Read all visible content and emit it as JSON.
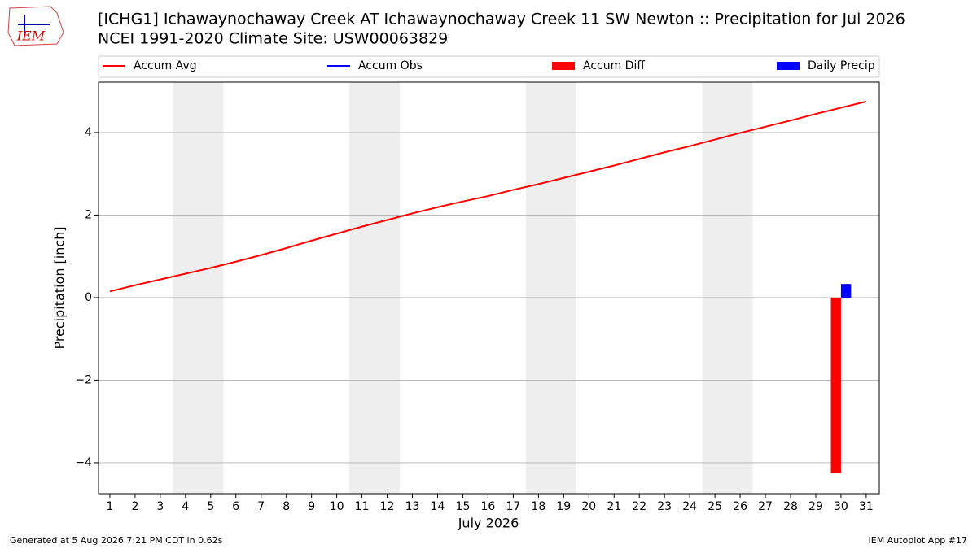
{
  "logo_text": "IEM",
  "chart_data": {
    "type": "combo",
    "title": "[ICHG1] Ichawaynochaway Creek  AT Ichawaynochaway Creek 11 SW Newton :: Precipitation for Jul 2026",
    "subtitle": "NCEI 1991-2020 Climate Site: USW00063829",
    "x_label": "July 2026",
    "y_label": "Precipitation [inch]",
    "x": [
      1,
      2,
      3,
      4,
      5,
      6,
      7,
      8,
      9,
      10,
      11,
      12,
      13,
      14,
      15,
      16,
      17,
      18,
      19,
      20,
      21,
      22,
      23,
      24,
      25,
      26,
      27,
      28,
      29,
      30,
      31
    ],
    "xlim": [
      0.55,
      31.52
    ],
    "xticks": [
      1,
      2,
      3,
      4,
      5,
      6,
      7,
      8,
      9,
      10,
      11,
      12,
      13,
      14,
      15,
      16,
      17,
      18,
      19,
      20,
      21,
      22,
      23,
      24,
      25,
      26,
      27,
      28,
      29,
      30,
      31
    ],
    "ylim": [
      -4.75,
      5.22
    ],
    "yticks": [
      {
        "value": -4,
        "label": "−4"
      },
      {
        "value": -2,
        "label": "−2"
      },
      0,
      2,
      4
    ],
    "grid": true,
    "shaded_x": [
      [
        3.5,
        5.5
      ],
      [
        10.5,
        12.5
      ],
      [
        17.5,
        19.5
      ],
      [
        24.5,
        26.5
      ]
    ],
    "shade_color": "#eeeeee",
    "series": [
      {
        "name": "Accum Avg",
        "type": "line",
        "color": "#ff0000",
        "values": [
          0.15,
          0.3,
          0.44,
          0.58,
          0.72,
          0.87,
          1.03,
          1.2,
          1.38,
          1.55,
          1.72,
          1.88,
          2.04,
          2.19,
          2.33,
          2.46,
          2.61,
          2.75,
          2.9,
          3.05,
          3.2,
          3.36,
          3.52,
          3.67,
          3.83,
          3.99,
          4.14,
          4.29,
          4.45,
          4.6,
          4.75
        ]
      },
      {
        "name": "Accum Obs",
        "type": "line",
        "color": "#0000ff",
        "values": [
          null,
          null,
          null,
          null,
          null,
          null,
          null,
          null,
          null,
          null,
          null,
          null,
          null,
          null,
          null,
          null,
          null,
          null,
          null,
          null,
          null,
          null,
          null,
          null,
          null,
          null,
          null,
          null,
          null,
          null,
          null
        ]
      },
      {
        "name": "Accum Diff",
        "type": "bar",
        "color": "#ff0000",
        "values": [
          null,
          null,
          null,
          null,
          null,
          null,
          null,
          null,
          null,
          null,
          null,
          null,
          null,
          null,
          null,
          null,
          null,
          null,
          null,
          null,
          null,
          null,
          null,
          null,
          null,
          null,
          null,
          null,
          null,
          -4.25,
          null
        ]
      },
      {
        "name": "Daily Precip",
        "type": "bar",
        "color": "#0000ff",
        "values": [
          null,
          null,
          null,
          null,
          null,
          null,
          null,
          null,
          null,
          null,
          null,
          null,
          null,
          null,
          null,
          null,
          null,
          null,
          null,
          null,
          null,
          null,
          null,
          null,
          null,
          null,
          null,
          null,
          null,
          0.33,
          null
        ]
      }
    ],
    "footer_left": "Generated at 5 Aug 2026 7:21 PM CDT in 0.62s",
    "footer_right": "IEM Autoplot App #17"
  }
}
